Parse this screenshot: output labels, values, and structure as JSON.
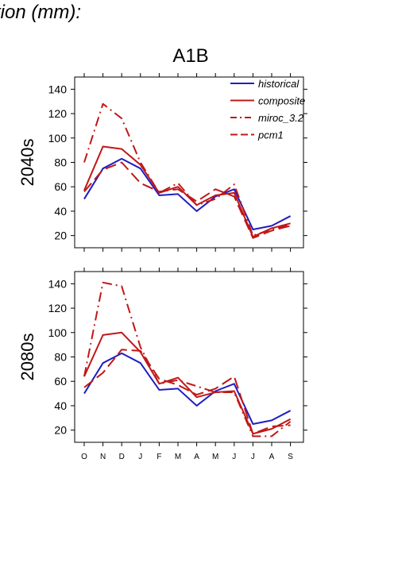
{
  "header": {
    "title_fragment": "tion (mm):",
    "scenario": "A1B"
  },
  "chart_data": [
    {
      "type": "line",
      "panel_label": "2040s",
      "categories": [
        "O",
        "N",
        "D",
        "J",
        "F",
        "M",
        "A",
        "M",
        "J",
        "J",
        "A",
        "S"
      ],
      "ylim": [
        10,
        150
      ],
      "yticks": [
        20,
        40,
        60,
        80,
        100,
        120,
        140
      ],
      "legend": "top-right",
      "series": [
        {
          "name": "historical",
          "color": "#1f1fbf",
          "dash": "solid",
          "values": [
            50,
            75,
            83,
            75,
            53,
            54,
            40,
            52,
            58,
            25,
            28,
            36
          ]
        },
        {
          "name": "composite",
          "color": "#c01818",
          "dash": "solid",
          "values": [
            57,
            93,
            91,
            78,
            55,
            60,
            45,
            53,
            55,
            19,
            26,
            30
          ]
        },
        {
          "name": "miroc_3.2",
          "color": "#c01818",
          "dash": "dashdot",
          "values": [
            80,
            128,
            116,
            80,
            55,
            63,
            45,
            50,
            62,
            20,
            25,
            29
          ]
        },
        {
          "name": "pcm1",
          "color": "#c01818",
          "dash": "dash",
          "values": [
            56,
            74,
            80,
            63,
            56,
            58,
            48,
            58,
            52,
            18,
            24,
            28
          ]
        }
      ]
    },
    {
      "type": "line",
      "panel_label": "2080s",
      "categories": [
        "O",
        "N",
        "D",
        "J",
        "F",
        "M",
        "A",
        "M",
        "J",
        "J",
        "A",
        "S"
      ],
      "ylim": [
        10,
        150
      ],
      "yticks": [
        20,
        40,
        60,
        80,
        100,
        120,
        140
      ],
      "series": [
        {
          "name": "historical",
          "color": "#1f1fbf",
          "dash": "solid",
          "values": [
            50,
            75,
            83,
            75,
            53,
            54,
            40,
            52,
            58,
            25,
            28,
            36
          ]
        },
        {
          "name": "composite",
          "color": "#c01818",
          "dash": "solid",
          "values": [
            64,
            98,
            100,
            84,
            58,
            63,
            47,
            51,
            52,
            17,
            21,
            29
          ]
        },
        {
          "name": "miroc_3.2",
          "color": "#c01818",
          "dash": "dashdot",
          "values": [
            64,
            141,
            138,
            88,
            58,
            61,
            56,
            51,
            51,
            15,
            15,
            27
          ]
        },
        {
          "name": "pcm1",
          "color": "#c01818",
          "dash": "dash",
          "values": [
            55,
            67,
            86,
            85,
            62,
            57,
            49,
            54,
            64,
            17,
            23,
            24
          ]
        }
      ]
    }
  ]
}
